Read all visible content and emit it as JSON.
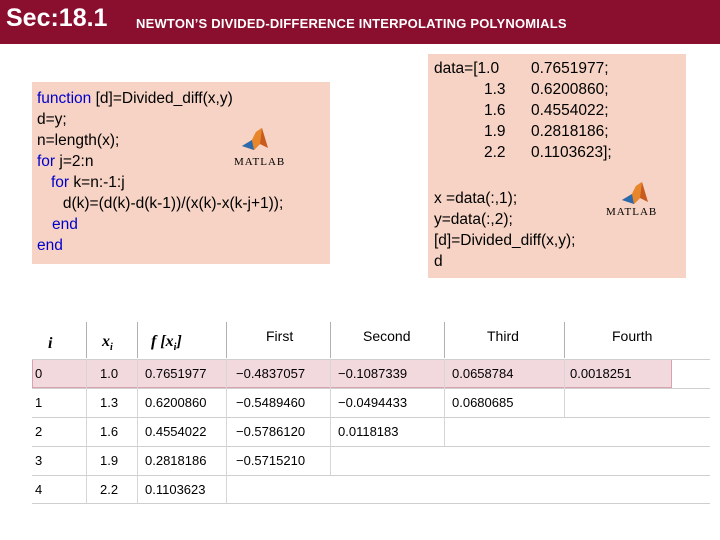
{
  "header": {
    "section": "Sec:18.1",
    "subtitle": "NEWTON’S DIVIDED-DIFFERENCE INTERPOLATING  POLYNOMIALS"
  },
  "code_left": {
    "lines": [
      {
        "kw": "function",
        "text": " [d]=Divided_diff(x,y)"
      },
      {
        "kw": "",
        "text": "d=y;"
      },
      {
        "kw": "",
        "text": "n=length(x);"
      },
      {
        "kw": "for",
        "text": " j=2:n"
      },
      {
        "kw": "for",
        "text": " k=n:-1:j",
        "indent": "   "
      },
      {
        "kw": "",
        "text": "      d(k)=(d(k)-d(k-1))/(x(k)-x(k-j+1));"
      },
      {
        "kw": "end",
        "text": "",
        "indent": "   "
      },
      {
        "kw": "end",
        "text": ""
      }
    ]
  },
  "code_right": {
    "data_prefix": "data=[",
    "data_rows": [
      [
        "1.0",
        "0.7651977;"
      ],
      [
        "1.3",
        "0.6200860;"
      ],
      [
        "1.6",
        "0.4554022;"
      ],
      [
        "1.9",
        "0.2818186;"
      ],
      [
        "2.2",
        "0.1103623];"
      ]
    ],
    "lines": [
      "x =data(:,1);",
      "y=data(:,2);",
      "[d]=Divided_diff(x,y);",
      "d"
    ]
  },
  "logo_text": "MATLAB",
  "table": {
    "headers": {
      "i": "i",
      "x": "x",
      "x_sub": "i",
      "f": "f [x",
      "f_sub": "i",
      "f_close": "]",
      "first": "First",
      "second": "Second",
      "third": "Third",
      "fourth": "Fourth"
    },
    "rows": [
      [
        "0",
        "1.0",
        "0.7651977",
        "−0.4837057",
        "−0.1087339",
        "0.0658784",
        "0.0018251"
      ],
      [
        "1",
        "1.3",
        "0.6200860",
        "−0.5489460",
        "−0.0494433",
        "0.0680685",
        ""
      ],
      [
        "2",
        "1.6",
        "0.4554022",
        "−0.5786120",
        "0.0118183",
        "",
        ""
      ],
      [
        "3",
        "1.9",
        "0.2818186",
        "−0.5715210",
        "",
        "",
        ""
      ],
      [
        "4",
        "2.2",
        "0.1103623",
        "",
        "",
        "",
        ""
      ]
    ]
  },
  "colors": {
    "header_bg": "#8a0f2f",
    "code_bg": "#f6d3c4",
    "keyword": "#0000cc",
    "highlight": "#f2d9dd"
  }
}
